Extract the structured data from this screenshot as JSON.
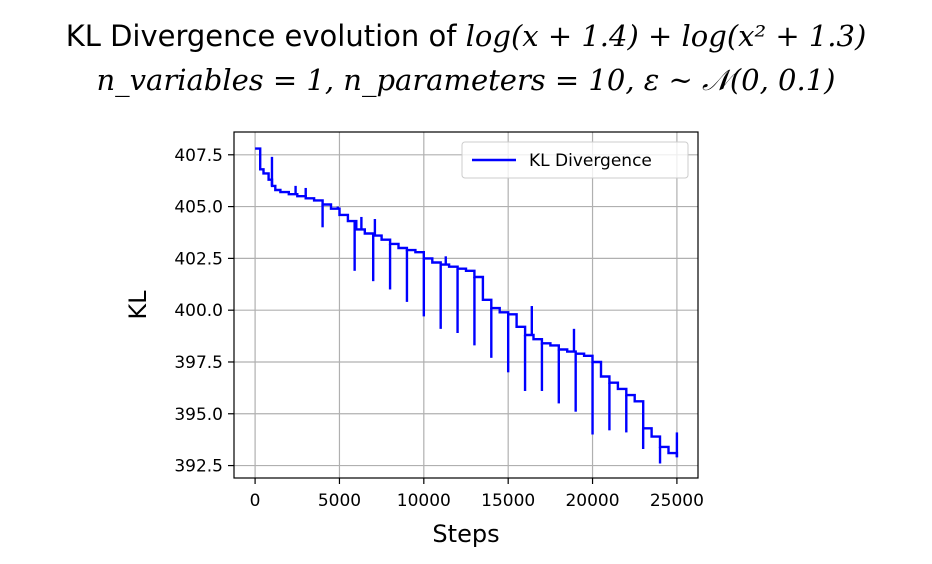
{
  "chart_data": {
    "type": "line",
    "title_line1_prefix": "KL Divergence evolution of ",
    "title_line1_math": "log(x + 1.4) + log(x² + 1.3)",
    "title_line2_math": "n_variables = 1, n_parameters = 10, ε ~ 𝒩(0, 0.1)",
    "xlabel": "Steps",
    "ylabel": "KL",
    "xlim": [
      -1250,
      26250
    ],
    "ylim": [
      391.9,
      408.6
    ],
    "xticks": [
      0,
      5000,
      10000,
      15000,
      20000,
      25000
    ],
    "xtick_labels": [
      "0",
      "5000",
      "10000",
      "15000",
      "20000",
      "25000"
    ],
    "yticks": [
      392.5,
      395.0,
      397.5,
      400.0,
      402.5,
      405.0,
      407.5
    ],
    "ytick_labels": [
      "392.5",
      "395.0",
      "397.5",
      "400.0",
      "402.5",
      "405.0",
      "407.5"
    ],
    "grid": true,
    "legend_position": "upper right",
    "series": [
      {
        "name": "KL Divergence",
        "color": "#0000ff",
        "x": [
          0,
          200,
          300,
          500,
          800,
          1000,
          1200,
          1500,
          2000,
          2500,
          3000,
          3500,
          4000,
          4500,
          5000,
          5500,
          6000,
          6500,
          7000,
          7500,
          8000,
          8500,
          9000,
          9500,
          10000,
          10500,
          11000,
          11500,
          12000,
          12500,
          13000,
          13500,
          14000,
          14500,
          15000,
          15500,
          16000,
          16500,
          17000,
          17500,
          18000,
          18500,
          19000,
          19500,
          20000,
          20500,
          21000,
          21500,
          22000,
          22500,
          23000,
          23500,
          24000,
          24500,
          25000
        ],
        "y": [
          407.8,
          407.8,
          406.8,
          406.6,
          406.3,
          406.0,
          405.8,
          405.7,
          405.6,
          405.5,
          405.4,
          405.3,
          405.1,
          404.9,
          404.6,
          404.3,
          403.9,
          403.7,
          403.6,
          403.4,
          403.2,
          403.0,
          402.9,
          402.8,
          402.5,
          402.3,
          402.2,
          402.1,
          402.0,
          401.9,
          401.6,
          400.5,
          400.1,
          399.9,
          399.8,
          399.2,
          398.8,
          398.6,
          398.4,
          398.3,
          398.1,
          398.0,
          397.9,
          397.8,
          397.5,
          396.8,
          396.5,
          396.2,
          395.9,
          395.6,
          394.3,
          393.9,
          393.4,
          393.1,
          392.9
        ]
      }
    ],
    "spikes": [
      {
        "x": 1000,
        "y": 407.4
      },
      {
        "x": 2400,
        "y": 406.0
      },
      {
        "x": 3000,
        "y": 405.9
      },
      {
        "x": 4000,
        "y": 404.0
      },
      {
        "x": 4900,
        "y": 405.0
      },
      {
        "x": 5900,
        "y": 401.9
      },
      {
        "x": 6300,
        "y": 404.5
      },
      {
        "x": 7000,
        "y": 401.4
      },
      {
        "x": 7100,
        "y": 404.4
      },
      {
        "x": 8000,
        "y": 401.0
      },
      {
        "x": 9000,
        "y": 400.4
      },
      {
        "x": 10000,
        "y": 399.7
      },
      {
        "x": 11000,
        "y": 399.1
      },
      {
        "x": 11300,
        "y": 402.6
      },
      {
        "x": 12000,
        "y": 398.9
      },
      {
        "x": 13000,
        "y": 398.3
      },
      {
        "x": 14000,
        "y": 397.7
      },
      {
        "x": 15000,
        "y": 397.0
      },
      {
        "x": 16000,
        "y": 396.1
      },
      {
        "x": 16400,
        "y": 400.2
      },
      {
        "x": 17000,
        "y": 396.1
      },
      {
        "x": 18000,
        "y": 395.5
      },
      {
        "x": 18900,
        "y": 399.1
      },
      {
        "x": 19000,
        "y": 395.1
      },
      {
        "x": 20000,
        "y": 394.0
      },
      {
        "x": 21000,
        "y": 394.2
      },
      {
        "x": 22000,
        "y": 394.1
      },
      {
        "x": 23000,
        "y": 393.3
      },
      {
        "x": 24000,
        "y": 392.6
      },
      {
        "x": 25000,
        "y": 394.1
      }
    ]
  }
}
